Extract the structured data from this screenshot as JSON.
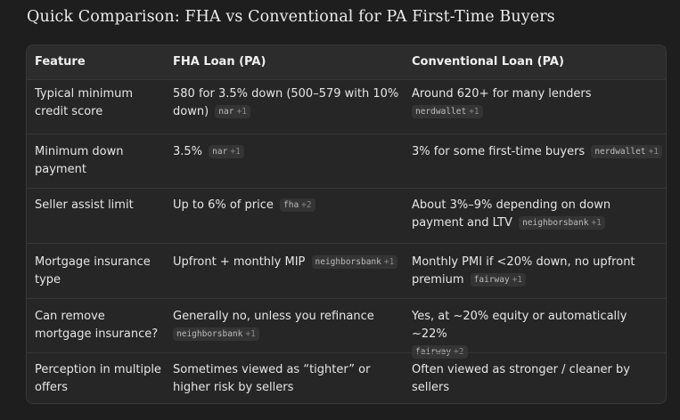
{
  "title": "Quick Comparison: FHA vs Conventional for PA First-Time Buyers",
  "table": {
    "headers": [
      "Feature",
      "FHA Loan (PA)",
      "Conventional Loan (PA)"
    ],
    "rows": [
      {
        "feature": "Typical minimum credit score",
        "fha": {
          "text": "580 for 3.5% down (500–579 with 10% down)",
          "source": "nar",
          "more": "+1"
        },
        "conv": {
          "text": "Around 620+ for many lenders",
          "source": "nerdwallet",
          "more": "+1"
        }
      },
      {
        "feature": "Minimum down payment",
        "fha": {
          "text": "3.5%",
          "source": "nar",
          "more": "+1"
        },
        "conv": {
          "text": "3% for some first-time buyers",
          "source": "nerdwallet",
          "more": "+1"
        }
      },
      {
        "feature": "Seller assist limit",
        "fha": {
          "text": "Up to 6% of price",
          "source": "fha",
          "more": "+2"
        },
        "conv": {
          "text": "About 3%–9% depending on down payment and LTV",
          "source": "neighborsbank",
          "more": "+1"
        }
      },
      {
        "feature": "Mortgage insurance type",
        "fha": {
          "text": "Upfront + monthly MIP",
          "source": "neighborsbank",
          "more": "+1"
        },
        "conv": {
          "text": "Monthly PMI if <20% down, no upfront premium",
          "source": "fairway",
          "more": "+1"
        }
      },
      {
        "feature": "Can remove mortgage insurance?",
        "fha": {
          "text": "Generally no, unless you refinance",
          "source": "neighborsbank",
          "more": "+1"
        },
        "conv": {
          "text": "Yes, at ~20% equity or automatically ~22%",
          "source": "fairway",
          "more": "+2"
        }
      },
      {
        "feature": "Perception in multiple offers",
        "fha": {
          "text": "Sometimes viewed as “tighter” or higher risk by sellers"
        },
        "conv": {
          "text": "Often viewed as stronger / cleaner by sellers"
        }
      }
    ]
  }
}
